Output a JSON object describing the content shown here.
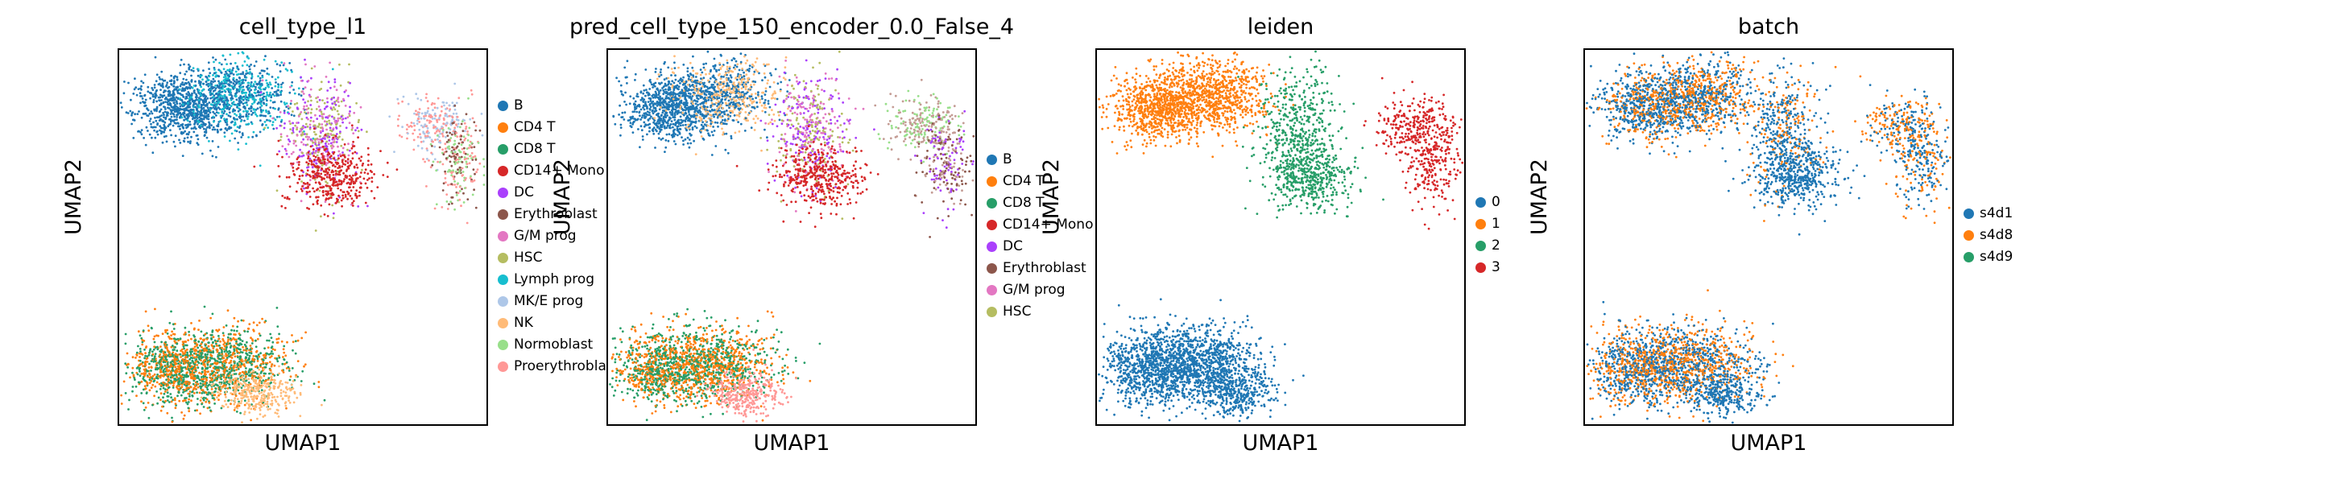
{
  "panels": [
    {
      "title": "cell_type_l1",
      "xlabel": "UMAP1",
      "ylabel": "UMAP2",
      "legend": [
        {
          "label": "B",
          "color": "#1f77b4"
        },
        {
          "label": "CD4 T",
          "color": "#ff7f0e"
        },
        {
          "label": "CD8 T",
          "color": "#279e68"
        },
        {
          "label": "CD14+ Mono",
          "color": "#d62728"
        },
        {
          "label": "DC",
          "color": "#aa40fc"
        },
        {
          "label": "Erythroblast",
          "color": "#8c564b"
        },
        {
          "label": "G/M prog",
          "color": "#e377c2"
        },
        {
          "label": "HSC",
          "color": "#b5bd61"
        },
        {
          "label": "Lymph prog",
          "color": "#17becf"
        },
        {
          "label": "MK/E prog",
          "color": "#aec7e8"
        },
        {
          "label": "NK",
          "color": "#ffbb78"
        },
        {
          "label": "Normoblast",
          "color": "#98df8a"
        },
        {
          "label": "Proerythroblast",
          "color": "#ff9896"
        }
      ]
    },
    {
      "title": "pred_cell_type_150_encoder_0.0_False_4",
      "xlabel": "UMAP1",
      "ylabel": "UMAP2",
      "legend": [
        {
          "label": "B",
          "color": "#1f77b4"
        },
        {
          "label": "CD4 T",
          "color": "#ff7f0e"
        },
        {
          "label": "CD8 T",
          "color": "#279e68"
        },
        {
          "label": "CD14+ Mono",
          "color": "#d62728"
        },
        {
          "label": "DC",
          "color": "#aa40fc"
        },
        {
          "label": "Erythroblast",
          "color": "#8c564b"
        },
        {
          "label": "G/M prog",
          "color": "#e377c2"
        },
        {
          "label": "HSC",
          "color": "#b5bd61"
        }
      ]
    },
    {
      "title": "leiden",
      "xlabel": "UMAP1",
      "ylabel": "UMAP2",
      "legend": [
        {
          "label": "0",
          "color": "#1f77b4"
        },
        {
          "label": "1",
          "color": "#ff7f0e"
        },
        {
          "label": "2",
          "color": "#279e68"
        },
        {
          "label": "3",
          "color": "#d62728"
        }
      ]
    },
    {
      "title": "batch",
      "xlabel": "UMAP1",
      "ylabel": "UMAP2",
      "legend": [
        {
          "label": "s4d1",
          "color": "#1f77b4"
        },
        {
          "label": "s4d8",
          "color": "#ff7f0e"
        },
        {
          "label": "s4d9",
          "color": "#279e68"
        }
      ]
    }
  ],
  "chart_data": [
    {
      "type": "scatter",
      "title": "cell_type_l1",
      "xlabel": "UMAP1",
      "ylabel": "UMAP2",
      "series": [
        {
          "name": "B"
        },
        {
          "name": "CD4 T"
        },
        {
          "name": "CD8 T"
        },
        {
          "name": "CD14+ Mono"
        },
        {
          "name": "DC"
        },
        {
          "name": "Erythroblast"
        },
        {
          "name": "G/M prog"
        },
        {
          "name": "HSC"
        },
        {
          "name": "Lymph prog"
        },
        {
          "name": "MK/E prog"
        },
        {
          "name": "NK"
        },
        {
          "name": "Normoblast"
        },
        {
          "name": "Proerythroblast"
        }
      ]
    },
    {
      "type": "scatter",
      "title": "pred_cell_type_150_encoder_0.0_False_4",
      "xlabel": "UMAP1",
      "ylabel": "UMAP2",
      "series": [
        {
          "name": "B"
        },
        {
          "name": "CD4 T"
        },
        {
          "name": "CD8 T"
        },
        {
          "name": "CD14+ Mono"
        },
        {
          "name": "DC"
        },
        {
          "name": "Erythroblast"
        },
        {
          "name": "G/M prog"
        },
        {
          "name": "HSC"
        }
      ]
    },
    {
      "type": "scatter",
      "title": "leiden",
      "xlabel": "UMAP1",
      "ylabel": "UMAP2",
      "series": [
        {
          "name": "0"
        },
        {
          "name": "1"
        },
        {
          "name": "2"
        },
        {
          "name": "3"
        }
      ]
    },
    {
      "type": "scatter",
      "title": "batch",
      "xlabel": "UMAP1",
      "ylabel": "UMAP2",
      "series": [
        {
          "name": "s4d1"
        },
        {
          "name": "s4d8"
        },
        {
          "name": "s4d9"
        }
      ]
    }
  ]
}
